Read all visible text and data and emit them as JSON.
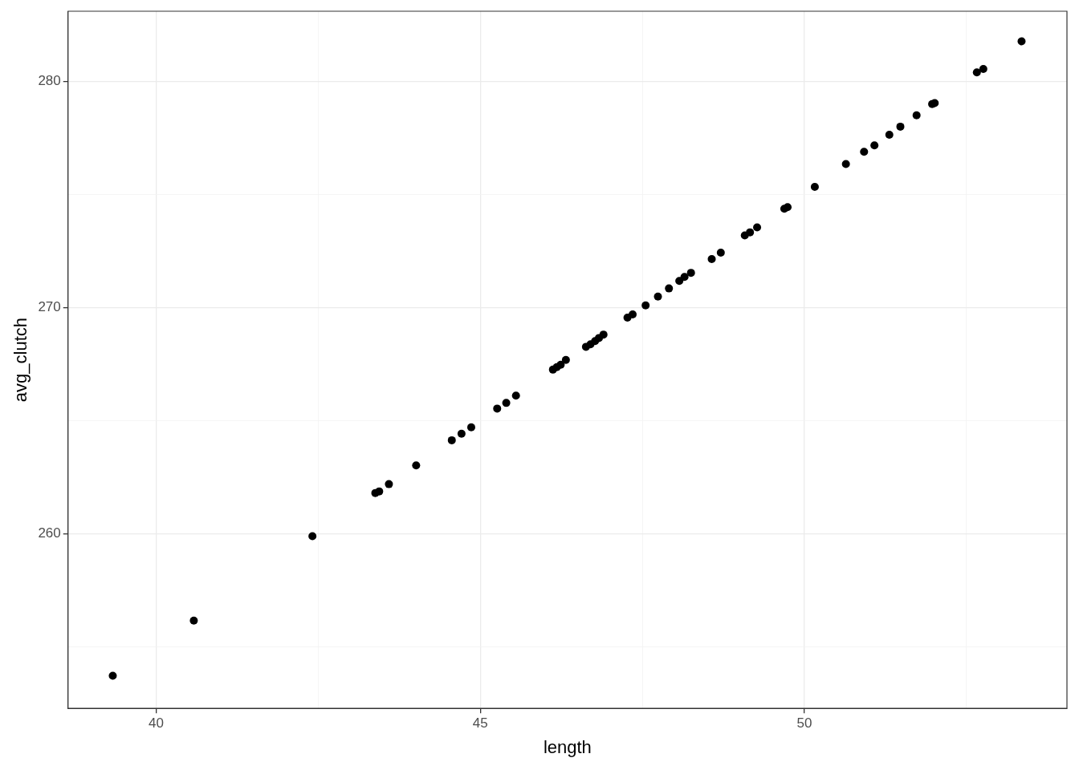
{
  "chart_data": {
    "type": "scatter",
    "xlabel": "length",
    "ylabel": "avg_clutch",
    "xlim": [
      38.64,
      54.05
    ],
    "ylim": [
      252.28,
      283.09
    ],
    "xticks": [
      40,
      {
        "value": 42.5,
        "label": null
      },
      45,
      {
        "value": 47.5,
        "label": null
      },
      50,
      {
        "value": 52.5,
        "label": null
      }
    ],
    "yticks": [
      {
        "value": 255,
        "label": null
      },
      260,
      {
        "value": 265,
        "label": null
      },
      270,
      {
        "value": 275,
        "label": null
      },
      280
    ],
    "grid": true,
    "legend": false,
    "marker": "circle",
    "series": [
      {
        "color": "#000000",
        "x": [
          39.33,
          40.58,
          42.41,
          43.38,
          43.44,
          43.59,
          44.01,
          44.56,
          44.71,
          44.86,
          45.26,
          45.4,
          45.55,
          46.12,
          46.18,
          46.24,
          46.32,
          46.63,
          46.7,
          46.77,
          46.83,
          46.9,
          47.27,
          47.35,
          47.55,
          47.74,
          47.91,
          48.07,
          48.15,
          48.25,
          48.57,
          48.71,
          49.08,
          49.16,
          49.27,
          49.69,
          49.74,
          50.16,
          50.64,
          50.92,
          51.08,
          51.31,
          51.48,
          51.73,
          51.97,
          52.01,
          52.66,
          52.76,
          53.35
        ],
        "values": [
          253.72,
          256.16,
          259.89,
          261.8,
          261.87,
          262.19,
          263.02,
          264.13,
          264.42,
          264.7,
          265.53,
          265.78,
          266.1,
          267.25,
          267.36,
          267.47,
          267.68,
          268.26,
          268.37,
          268.51,
          268.65,
          268.8,
          269.55,
          269.69,
          270.09,
          270.48,
          270.84,
          271.17,
          271.35,
          271.53,
          272.14,
          272.42,
          273.18,
          273.32,
          273.54,
          274.36,
          274.43,
          275.33,
          276.34,
          276.88,
          277.16,
          277.63,
          277.99,
          278.49,
          278.99,
          279.03,
          280.39,
          280.54,
          281.76
        ]
      }
    ]
  }
}
